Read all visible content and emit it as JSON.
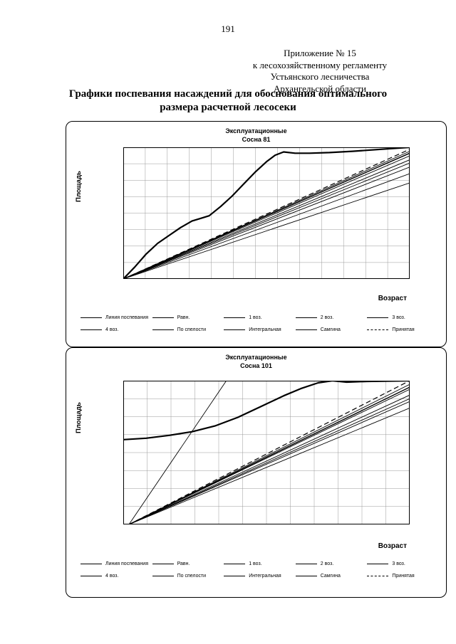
{
  "page": {
    "number": "191"
  },
  "header": {
    "lines": [
      "Приложение № 15",
      "к лесохозяйственному регламенту",
      "Устьянского лесничества",
      "Архангельской области"
    ],
    "title_line1": "Графики поспевания насаждений для обоснования оптимального",
    "title_line2": "размера расчетной лесосеки"
  },
  "legend": {
    "row1": [
      {
        "label": "Линия поспевания",
        "swatch": "solid"
      },
      {
        "label": "Равн.",
        "swatch": "solid"
      },
      {
        "label": "1 воз.",
        "swatch": "solid"
      },
      {
        "label": "2 воз.",
        "swatch": "solid"
      },
      {
        "label": "3 воз.",
        "swatch": "solid"
      }
    ],
    "row2": [
      {
        "label": "4 воз.",
        "swatch": "solid"
      },
      {
        "label": "По спелости",
        "swatch": "solid"
      },
      {
        "label": "Интегральная",
        "swatch": "solid"
      },
      {
        "label": "Самгина",
        "swatch": "solid"
      },
      {
        "label": "Принятая",
        "swatch": "dash"
      }
    ]
  },
  "chart_data": [
    {
      "type": "line",
      "title_line1": "Эксплуатационные",
      "title_line2": "Сосна 81",
      "xlabel": "Возраст",
      "ylabel": "Площадь",
      "axis_ticks": "none (unlabeled axes, values normalized 0-1)",
      "xlim": [
        0,
        1
      ],
      "ylim": [
        0,
        1
      ],
      "grid": {
        "cols": 13,
        "rows": 8
      },
      "series": [
        {
          "name": "Линия поспевания",
          "style": "thick",
          "points": [
            [
              0,
              0
            ],
            [
              0.04,
              0.09
            ],
            [
              0.08,
              0.19
            ],
            [
              0.12,
              0.27
            ],
            [
              0.16,
              0.33
            ],
            [
              0.2,
              0.39
            ],
            [
              0.24,
              0.44
            ],
            [
              0.27,
              0.46
            ],
            [
              0.3,
              0.48
            ],
            [
              0.34,
              0.55
            ],
            [
              0.38,
              0.63
            ],
            [
              0.42,
              0.72
            ],
            [
              0.46,
              0.81
            ],
            [
              0.5,
              0.89
            ],
            [
              0.53,
              0.94
            ],
            [
              0.56,
              0.965
            ],
            [
              0.6,
              0.955
            ],
            [
              0.65,
              0.955
            ],
            [
              0.72,
              0.96
            ],
            [
              0.8,
              0.97
            ],
            [
              0.9,
              0.985
            ],
            [
              1,
              1
            ]
          ]
        },
        {
          "name": "Равн.",
          "style": "solid",
          "points": [
            [
              0,
              0
            ],
            [
              1,
              0.97
            ]
          ]
        },
        {
          "name": "1 воз.",
          "style": "solid",
          "points": [
            [
              0,
              0
            ],
            [
              1,
              0.935
            ]
          ]
        },
        {
          "name": "2 воз.",
          "style": "solid",
          "points": [
            [
              0,
              0
            ],
            [
              1,
              0.88
            ]
          ]
        },
        {
          "name": "3 воз.",
          "style": "solid",
          "points": [
            [
              0,
              0
            ],
            [
              1,
              0.8
            ]
          ]
        },
        {
          "name": "4 воз.",
          "style": "solid",
          "points": [
            [
              0,
              0
            ],
            [
              1,
              0.73
            ]
          ]
        },
        {
          "name": "По спелости",
          "style": "solid",
          "points": [
            [
              0,
              0
            ],
            [
              1,
              0.905
            ]
          ]
        },
        {
          "name": "Интегральная",
          "style": "medium",
          "points": [
            [
              0,
              0
            ],
            [
              1,
              0.955
            ]
          ]
        },
        {
          "name": "Самгина",
          "style": "solid",
          "points": [
            [
              0,
              0
            ],
            [
              1,
              0.85
            ]
          ]
        },
        {
          "name": "Принятая",
          "style": "dash",
          "points": [
            [
              0,
              0
            ],
            [
              1,
              0.985
            ]
          ]
        }
      ]
    },
    {
      "type": "line",
      "title_line1": "Эксплуатационные",
      "title_line2": "Сосна 101",
      "xlabel": "Возраст",
      "ylabel": "Площадь",
      "axis_ticks": "none (unlabeled axes, values normalized 0-1)",
      "xlim": [
        0,
        1
      ],
      "ylim": [
        0,
        1
      ],
      "grid": {
        "cols": 12,
        "rows": 8
      },
      "series": [
        {
          "name": "Линия поспевания",
          "style": "thick",
          "points": [
            [
              0,
              0.59
            ],
            [
              0.08,
              0.6
            ],
            [
              0.16,
              0.62
            ],
            [
              0.24,
              0.645
            ],
            [
              0.32,
              0.685
            ],
            [
              0.4,
              0.745
            ],
            [
              0.48,
              0.82
            ],
            [
              0.56,
              0.895
            ],
            [
              0.62,
              0.945
            ],
            [
              0.68,
              0.985
            ],
            [
              0.73,
              1.0
            ],
            [
              0.78,
              0.99
            ],
            [
              0.85,
              0.995
            ],
            [
              1,
              1
            ]
          ]
        },
        {
          "name": "По спелости",
          "style": "solid",
          "points": [
            [
              0.02,
              0
            ],
            [
              0.36,
              1
            ]
          ]
        },
        {
          "name": "Равн.",
          "style": "solid",
          "points": [
            [
              0.02,
              0
            ],
            [
              1,
              0.975
            ]
          ]
        },
        {
          "name": "1 воз.",
          "style": "solid",
          "points": [
            [
              0.02,
              0
            ],
            [
              1,
              0.94
            ]
          ]
        },
        {
          "name": "2 воз.",
          "style": "solid",
          "points": [
            [
              0.02,
              0
            ],
            [
              1,
              0.9
            ]
          ]
        },
        {
          "name": "3 воз.",
          "style": "solid",
          "points": [
            [
              0.02,
              0
            ],
            [
              1,
              0.855
            ]
          ]
        },
        {
          "name": "4 воз.",
          "style": "solid",
          "points": [
            [
              0.02,
              0
            ],
            [
              1,
              0.81
            ]
          ]
        },
        {
          "name": "Интегральная",
          "style": "medium",
          "points": [
            [
              0.02,
              0
            ],
            [
              1,
              0.955
            ]
          ]
        },
        {
          "name": "Самгина",
          "style": "solid",
          "points": [
            [
              0.02,
              0
            ],
            [
              1,
              0.875
            ]
          ]
        },
        {
          "name": "Принятая",
          "style": "dash",
          "points": [
            [
              0.02,
              0
            ],
            [
              1,
              1
            ]
          ]
        }
      ]
    }
  ]
}
